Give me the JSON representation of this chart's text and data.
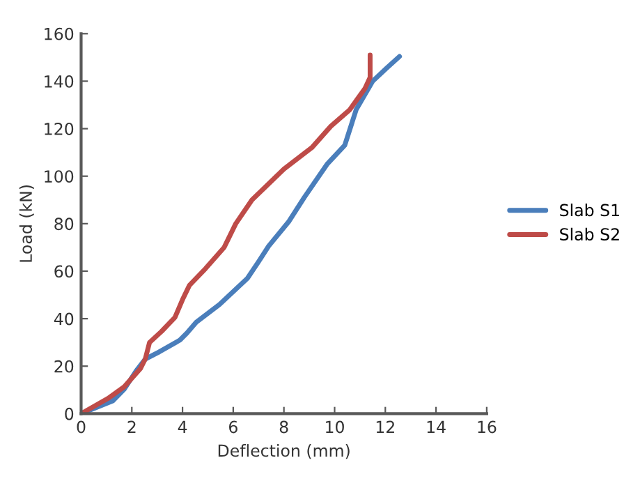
{
  "chart_data": {
    "type": "line",
    "xlabel": "Deflection (mm)",
    "ylabel": "Load (kN)",
    "xlim": [
      0,
      16
    ],
    "xticks": [
      0,
      2,
      4,
      6,
      8,
      10,
      12,
      14,
      16
    ],
    "ylim": [
      0,
      160
    ],
    "yticks": [
      0,
      20,
      40,
      60,
      80,
      100,
      120,
      140,
      160
    ],
    "grid": false,
    "legend": "right",
    "marker": "none",
    "line_style": "solid",
    "series": [
      {
        "name": "Slab S1",
        "color": "#4a7ebb",
        "x": [
          0,
          1.25,
          1.7,
          2.17,
          2.53,
          3.08,
          3.9,
          4.18,
          4.54,
          5.46,
          6.56,
          7.0,
          7.4,
          8.2,
          8.8,
          9.7,
          10.4,
          10.85,
          11.5,
          12.05,
          12.56
        ],
        "values": [
          0,
          5.4,
          10.3,
          18,
          23,
          26,
          31,
          34,
          38.5,
          46,
          57,
          64,
          70.6,
          81,
          91,
          105,
          113,
          128,
          140,
          145.5,
          150.4
        ]
      },
      {
        "name": "Slab S2",
        "color": "#be4b48",
        "x": [
          0,
          1.06,
          1.7,
          2.34,
          2.53,
          2.7,
          3.17,
          3.7,
          4.0,
          4.27,
          4.9,
          5.64,
          6.1,
          6.74,
          8.0,
          9.1,
          9.85,
          10.6,
          11.2,
          11.4,
          11.4
        ],
        "values": [
          0,
          6.4,
          11.3,
          19,
          23,
          30,
          34.6,
          40.5,
          48,
          54,
          61,
          70,
          80,
          90,
          103,
          112,
          121,
          128,
          137,
          141.6,
          151
        ]
      }
    ]
  }
}
